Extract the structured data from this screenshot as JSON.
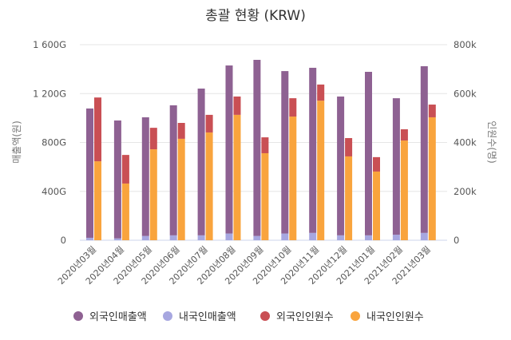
{
  "chart_data": {
    "type": "bar",
    "stacked": true,
    "title": "총괄 현황 (KRW)",
    "ylabel_left": "매출액(원)",
    "ylabel_right": "인원수(명)",
    "ylim_left": [
      0,
      1600
    ],
    "ylim_right": [
      0,
      800
    ],
    "yticks_left": [
      "0",
      "400G",
      "800G",
      "1 200G",
      "1 600G"
    ],
    "yticks_right": [
      "0",
      "200k",
      "400k",
      "600k",
      "800k"
    ],
    "grid": true,
    "legend_position": "bottom",
    "categories": [
      "2020년03월",
      "2020년04월",
      "2020년05월",
      "2020년06월",
      "2020년07월",
      "2020년08월",
      "2020년09월",
      "2020년10월",
      "2020년11월",
      "2020년12월",
      "2021년01월",
      "2021년02월",
      "2021년03월"
    ],
    "series": [
      {
        "name": "외국인매출액",
        "axis": "left",
        "stack": "sales",
        "unit": "G",
        "color": "#8e6192",
        "values": [
          1058,
          965,
          971,
          1064,
          1201,
          1375,
          1441,
          1329,
          1351,
          1136,
          1338,
          1117,
          1364
        ]
      },
      {
        "name": "내국인매출액",
        "axis": "left",
        "stack": "sales",
        "unit": "G",
        "color": "#a7a7e0",
        "values": [
          20,
          15,
          35,
          40,
          40,
          55,
          35,
          55,
          60,
          40,
          40,
          45,
          60
        ]
      },
      {
        "name": "외국인인원수",
        "axis": "right",
        "stack": "visitors",
        "unit": "k",
        "color": "#c94f54",
        "values": [
          261,
          117,
          88,
          65,
          72,
          75,
          65,
          75,
          66,
          75,
          59,
          46,
          52
        ]
      },
      {
        "name": "내국인인원수",
        "axis": "right",
        "stack": "visitors",
        "unit": "k",
        "color": "#f9a43d",
        "values": [
          323,
          232,
          372,
          415,
          441,
          513,
          356,
          506,
          571,
          343,
          281,
          408,
          503
        ]
      }
    ]
  }
}
